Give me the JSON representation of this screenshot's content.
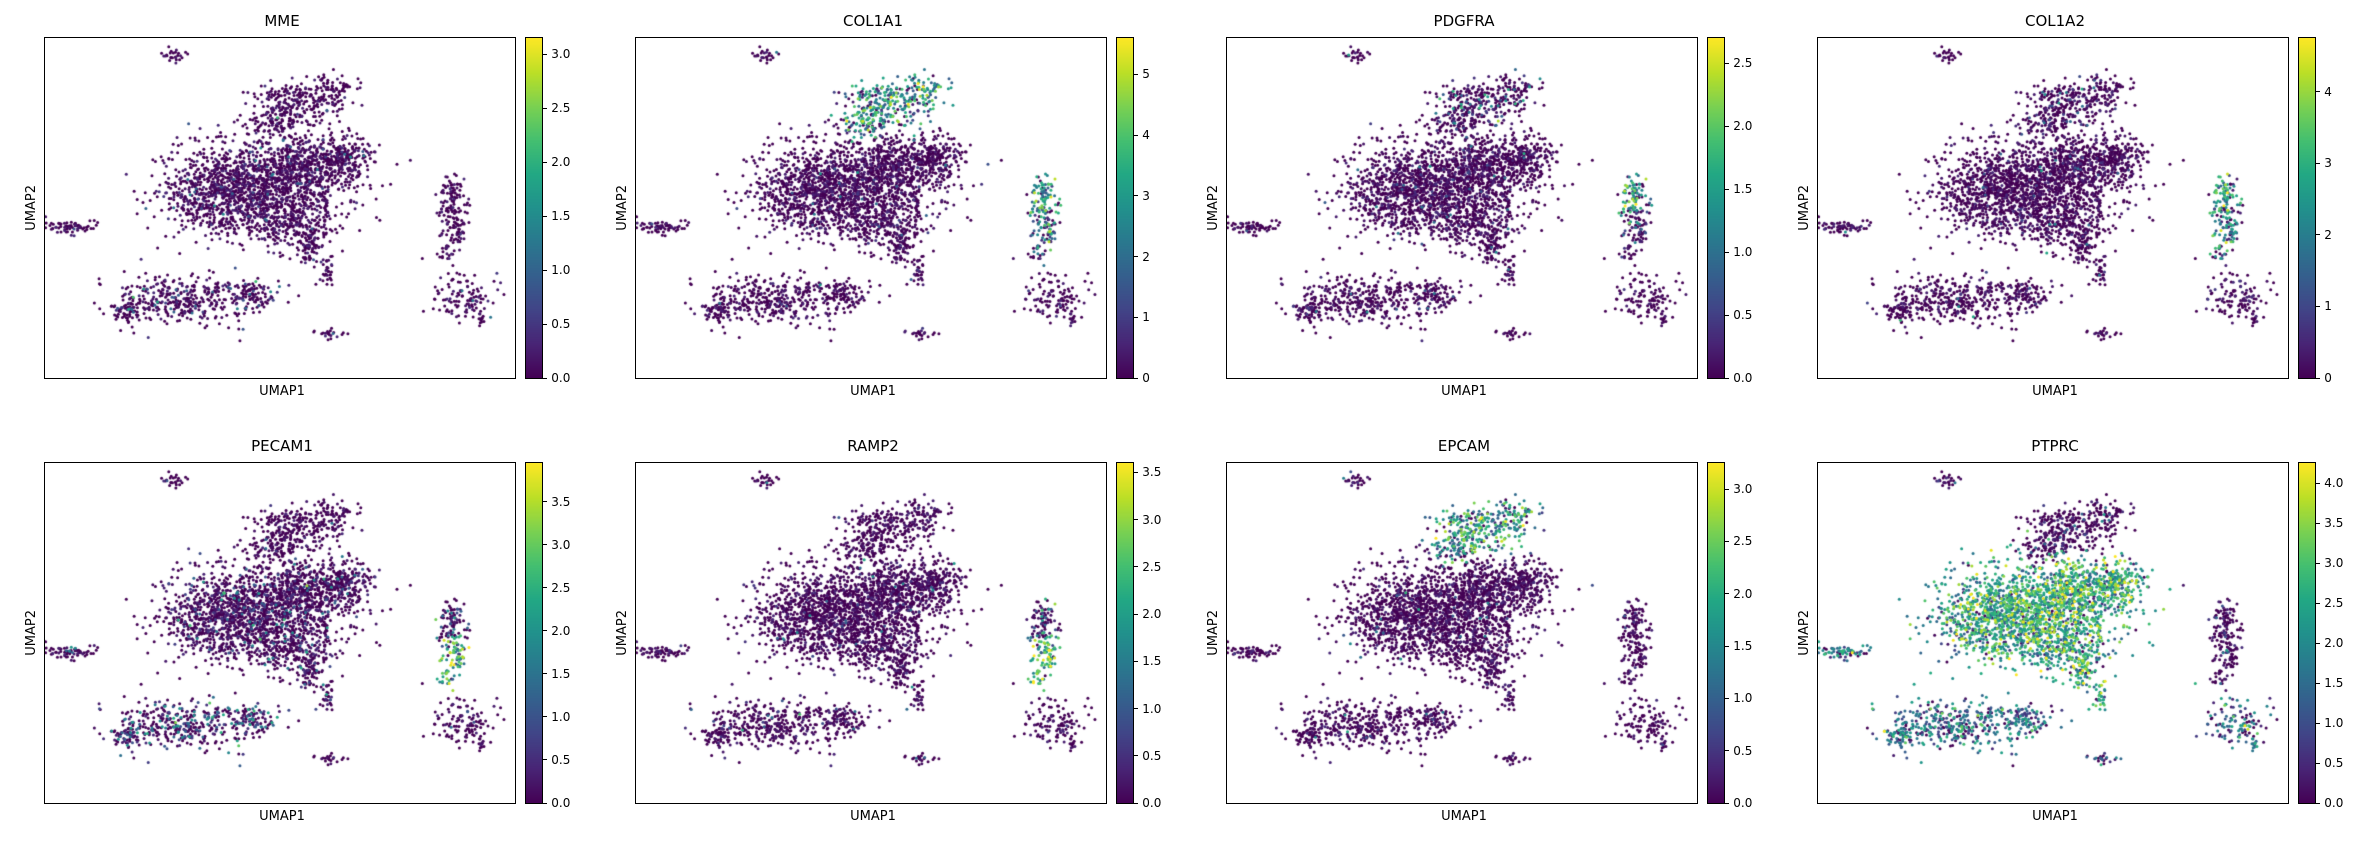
{
  "figure": {
    "background": "#ffffff",
    "n_rows": 2,
    "n_cols": 4
  },
  "viridis_stops": [
    "#440154",
    "#482475",
    "#414487",
    "#355f8d",
    "#2a788e",
    "#21918c",
    "#22a884",
    "#44bf70",
    "#7ad151",
    "#bddf26",
    "#fde725"
  ],
  "embedding": {
    "groups": {
      "tinyTop": [
        [
          0.272,
          0.055,
          0.013,
          0.009,
          26
        ]
      ],
      "topLobe": [
        [
          0.535,
          0.195,
          0.05,
          0.032,
          240
        ],
        [
          0.615,
          0.145,
          0.025,
          0.018,
          60
        ],
        [
          0.475,
          0.25,
          0.028,
          0.02,
          70
        ]
      ],
      "main": [
        [
          0.455,
          0.42,
          0.095,
          0.07,
          900
        ],
        [
          0.375,
          0.47,
          0.065,
          0.055,
          500
        ],
        [
          0.555,
          0.375,
          0.055,
          0.045,
          420
        ],
        [
          0.64,
          0.355,
          0.032,
          0.028,
          150
        ],
        [
          0.515,
          0.535,
          0.055,
          0.04,
          320
        ],
        [
          0.565,
          0.615,
          0.018,
          0.03,
          80
        ],
        [
          0.6,
          0.69,
          0.007,
          0.022,
          30
        ]
      ],
      "leftSmall": [
        [
          0.052,
          0.555,
          0.027,
          0.011,
          70
        ]
      ],
      "rightVertTop": [
        [
          0.862,
          0.465,
          0.017,
          0.032,
          85
        ]
      ],
      "rightVertBottom": [
        [
          0.872,
          0.56,
          0.015,
          0.028,
          70
        ],
        [
          0.855,
          0.632,
          0.008,
          0.014,
          20
        ]
      ],
      "rightBlob": [
        [
          0.893,
          0.765,
          0.03,
          0.036,
          110
        ],
        [
          0.928,
          0.825,
          0.009,
          0.011,
          14
        ]
      ],
      "bottomCluster": [
        [
          0.3,
          0.77,
          0.08,
          0.036,
          380
        ],
        [
          0.445,
          0.755,
          0.028,
          0.02,
          70
        ],
        [
          0.175,
          0.8,
          0.024,
          0.017,
          60
        ]
      ],
      "tinyBottom": [
        [
          0.612,
          0.872,
          0.013,
          0.007,
          22
        ]
      ]
    }
  },
  "chart_data": [
    {
      "type": "scatter",
      "title": "MME",
      "xlabel": "UMAP1",
      "ylabel": "UMAP2",
      "colorbar": {
        "vmax": 3.15,
        "ticks": [
          {
            "v": 0.0,
            "label": "0.0"
          },
          {
            "v": 0.5,
            "label": "0.5"
          },
          {
            "v": 1.0,
            "label": "1.0"
          },
          {
            "v": 1.5,
            "label": "1.5"
          },
          {
            "v": 2.0,
            "label": "2.0"
          },
          {
            "v": 2.5,
            "label": "2.5"
          },
          {
            "v": 3.0,
            "label": "3.0"
          }
        ]
      },
      "expression": {
        "default": [
          0.03,
          0.1
        ],
        "main": [
          0.05,
          0.12
        ],
        "bottomCluster": [
          0.1,
          0.2
        ]
      }
    },
    {
      "type": "scatter",
      "title": "COL1A1",
      "xlabel": "UMAP1",
      "ylabel": "UMAP2",
      "colorbar": {
        "vmax": 5.6,
        "ticks": [
          {
            "v": 0,
            "label": "0"
          },
          {
            "v": 1,
            "label": "1"
          },
          {
            "v": 2,
            "label": "2"
          },
          {
            "v": 3,
            "label": "3"
          },
          {
            "v": 4,
            "label": "4"
          },
          {
            "v": 5,
            "label": "5"
          }
        ]
      },
      "expression": {
        "default": [
          0.03,
          0.1
        ],
        "topLobe": [
          0.85,
          0.45
        ],
        "rightVertTop": [
          0.9,
          0.52
        ],
        "rightVertBottom": [
          0.75,
          0.4
        ]
      }
    },
    {
      "type": "scatter",
      "title": "PDGFRA",
      "xlabel": "UMAP1",
      "ylabel": "UMAP2",
      "colorbar": {
        "vmax": 2.7,
        "ticks": [
          {
            "v": 0.0,
            "label": "0.0"
          },
          {
            "v": 0.5,
            "label": "0.5"
          },
          {
            "v": 1.0,
            "label": "1.0"
          },
          {
            "v": 1.5,
            "label": "1.5"
          },
          {
            "v": 2.0,
            "label": "2.0"
          },
          {
            "v": 2.5,
            "label": "2.5"
          }
        ]
      },
      "expression": {
        "default": [
          0.03,
          0.1
        ],
        "topLobe": [
          0.2,
          0.25
        ],
        "rightVertTop": [
          0.8,
          0.58
        ],
        "rightVertBottom": [
          0.25,
          0.2
        ]
      }
    },
    {
      "type": "scatter",
      "title": "COL1A2",
      "xlabel": "UMAP1",
      "ylabel": "UMAP2",
      "colorbar": {
        "vmax": 4.75,
        "ticks": [
          {
            "v": 0,
            "label": "0"
          },
          {
            "v": 1,
            "label": "1"
          },
          {
            "v": 2,
            "label": "2"
          },
          {
            "v": 3,
            "label": "3"
          },
          {
            "v": 4,
            "label": "4"
          }
        ]
      },
      "expression": {
        "default": [
          0.03,
          0.1
        ],
        "topLobe": [
          0.12,
          0.2
        ],
        "rightVertTop": [
          0.9,
          0.52
        ],
        "rightVertBottom": [
          0.8,
          0.45
        ]
      }
    },
    {
      "type": "scatter",
      "title": "PECAM1",
      "xlabel": "UMAP1",
      "ylabel": "UMAP2",
      "colorbar": {
        "vmax": 3.95,
        "ticks": [
          {
            "v": 0.0,
            "label": "0.0"
          },
          {
            "v": 0.5,
            "label": "0.5"
          },
          {
            "v": 1.0,
            "label": "1.0"
          },
          {
            "v": 1.5,
            "label": "1.5"
          },
          {
            "v": 2.0,
            "label": "2.0"
          },
          {
            "v": 2.5,
            "label": "2.5"
          },
          {
            "v": 3.0,
            "label": "3.0"
          },
          {
            "v": 3.5,
            "label": "3.5"
          }
        ]
      },
      "expression": {
        "default": [
          0.04,
          0.12
        ],
        "main": [
          0.12,
          0.18
        ],
        "bottomCluster": [
          0.45,
          0.28
        ],
        "leftSmall": [
          0.2,
          0.2
        ],
        "rightVertTop": [
          0.25,
          0.25
        ],
        "rightVertBottom": [
          0.9,
          0.62
        ]
      }
    },
    {
      "type": "scatter",
      "title": "RAMP2",
      "xlabel": "UMAP1",
      "ylabel": "UMAP2",
      "colorbar": {
        "vmax": 3.6,
        "ticks": [
          {
            "v": 0.0,
            "label": "0.0"
          },
          {
            "v": 0.5,
            "label": "0.5"
          },
          {
            "v": 1.0,
            "label": "1.0"
          },
          {
            "v": 1.5,
            "label": "1.5"
          },
          {
            "v": 2.0,
            "label": "2.0"
          },
          {
            "v": 2.5,
            "label": "2.5"
          },
          {
            "v": 3.0,
            "label": "3.0"
          },
          {
            "v": 3.5,
            "label": "3.5"
          }
        ]
      },
      "expression": {
        "default": [
          0.03,
          0.1
        ],
        "bottomCluster": [
          0.06,
          0.12
        ],
        "rightVertTop": [
          0.3,
          0.3
        ],
        "rightVertBottom": [
          0.95,
          0.68
        ]
      }
    },
    {
      "type": "scatter",
      "title": "EPCAM",
      "xlabel": "UMAP1",
      "ylabel": "UMAP2",
      "colorbar": {
        "vmax": 3.25,
        "ticks": [
          {
            "v": 0.0,
            "label": "0.0"
          },
          {
            "v": 0.5,
            "label": "0.5"
          },
          {
            "v": 1.0,
            "label": "1.0"
          },
          {
            "v": 1.5,
            "label": "1.5"
          },
          {
            "v": 2.0,
            "label": "2.0"
          },
          {
            "v": 2.5,
            "label": "2.5"
          },
          {
            "v": 3.0,
            "label": "3.0"
          }
        ]
      },
      "expression": {
        "default": [
          0.03,
          0.1
        ],
        "topLobe": [
          0.85,
          0.52
        ],
        "tinyTop": [
          0.3,
          0.2
        ]
      }
    },
    {
      "type": "scatter",
      "title": "PTPRC",
      "xlabel": "UMAP1",
      "ylabel": "UMAP2",
      "colorbar": {
        "vmax": 4.25,
        "ticks": [
          {
            "v": 0.0,
            "label": "0.0"
          },
          {
            "v": 0.5,
            "label": "0.5"
          },
          {
            "v": 1.0,
            "label": "1.0"
          },
          {
            "v": 1.5,
            "label": "1.5"
          },
          {
            "v": 2.0,
            "label": "2.0"
          },
          {
            "v": 2.5,
            "label": "2.5"
          },
          {
            "v": 3.0,
            "label": "3.0"
          },
          {
            "v": 3.5,
            "label": "3.5"
          },
          {
            "v": 4.0,
            "label": "4.0"
          }
        ]
      },
      "expression": {
        "default": [
          0.08,
          0.12
        ],
        "main": [
          0.95,
          0.55
        ],
        "bottomCluster": [
          0.9,
          0.33
        ],
        "leftSmall": [
          0.9,
          0.42
        ],
        "rightBlob": [
          0.85,
          0.33
        ],
        "tinyBottom": [
          0.8,
          0.3
        ],
        "tinyTop": [
          0.2,
          0.15
        ],
        "topLobe": [
          0.12,
          0.12
        ],
        "rightVertTop": [
          0.1,
          0.12
        ],
        "rightVertBottom": [
          0.1,
          0.12
        ]
      }
    }
  ]
}
